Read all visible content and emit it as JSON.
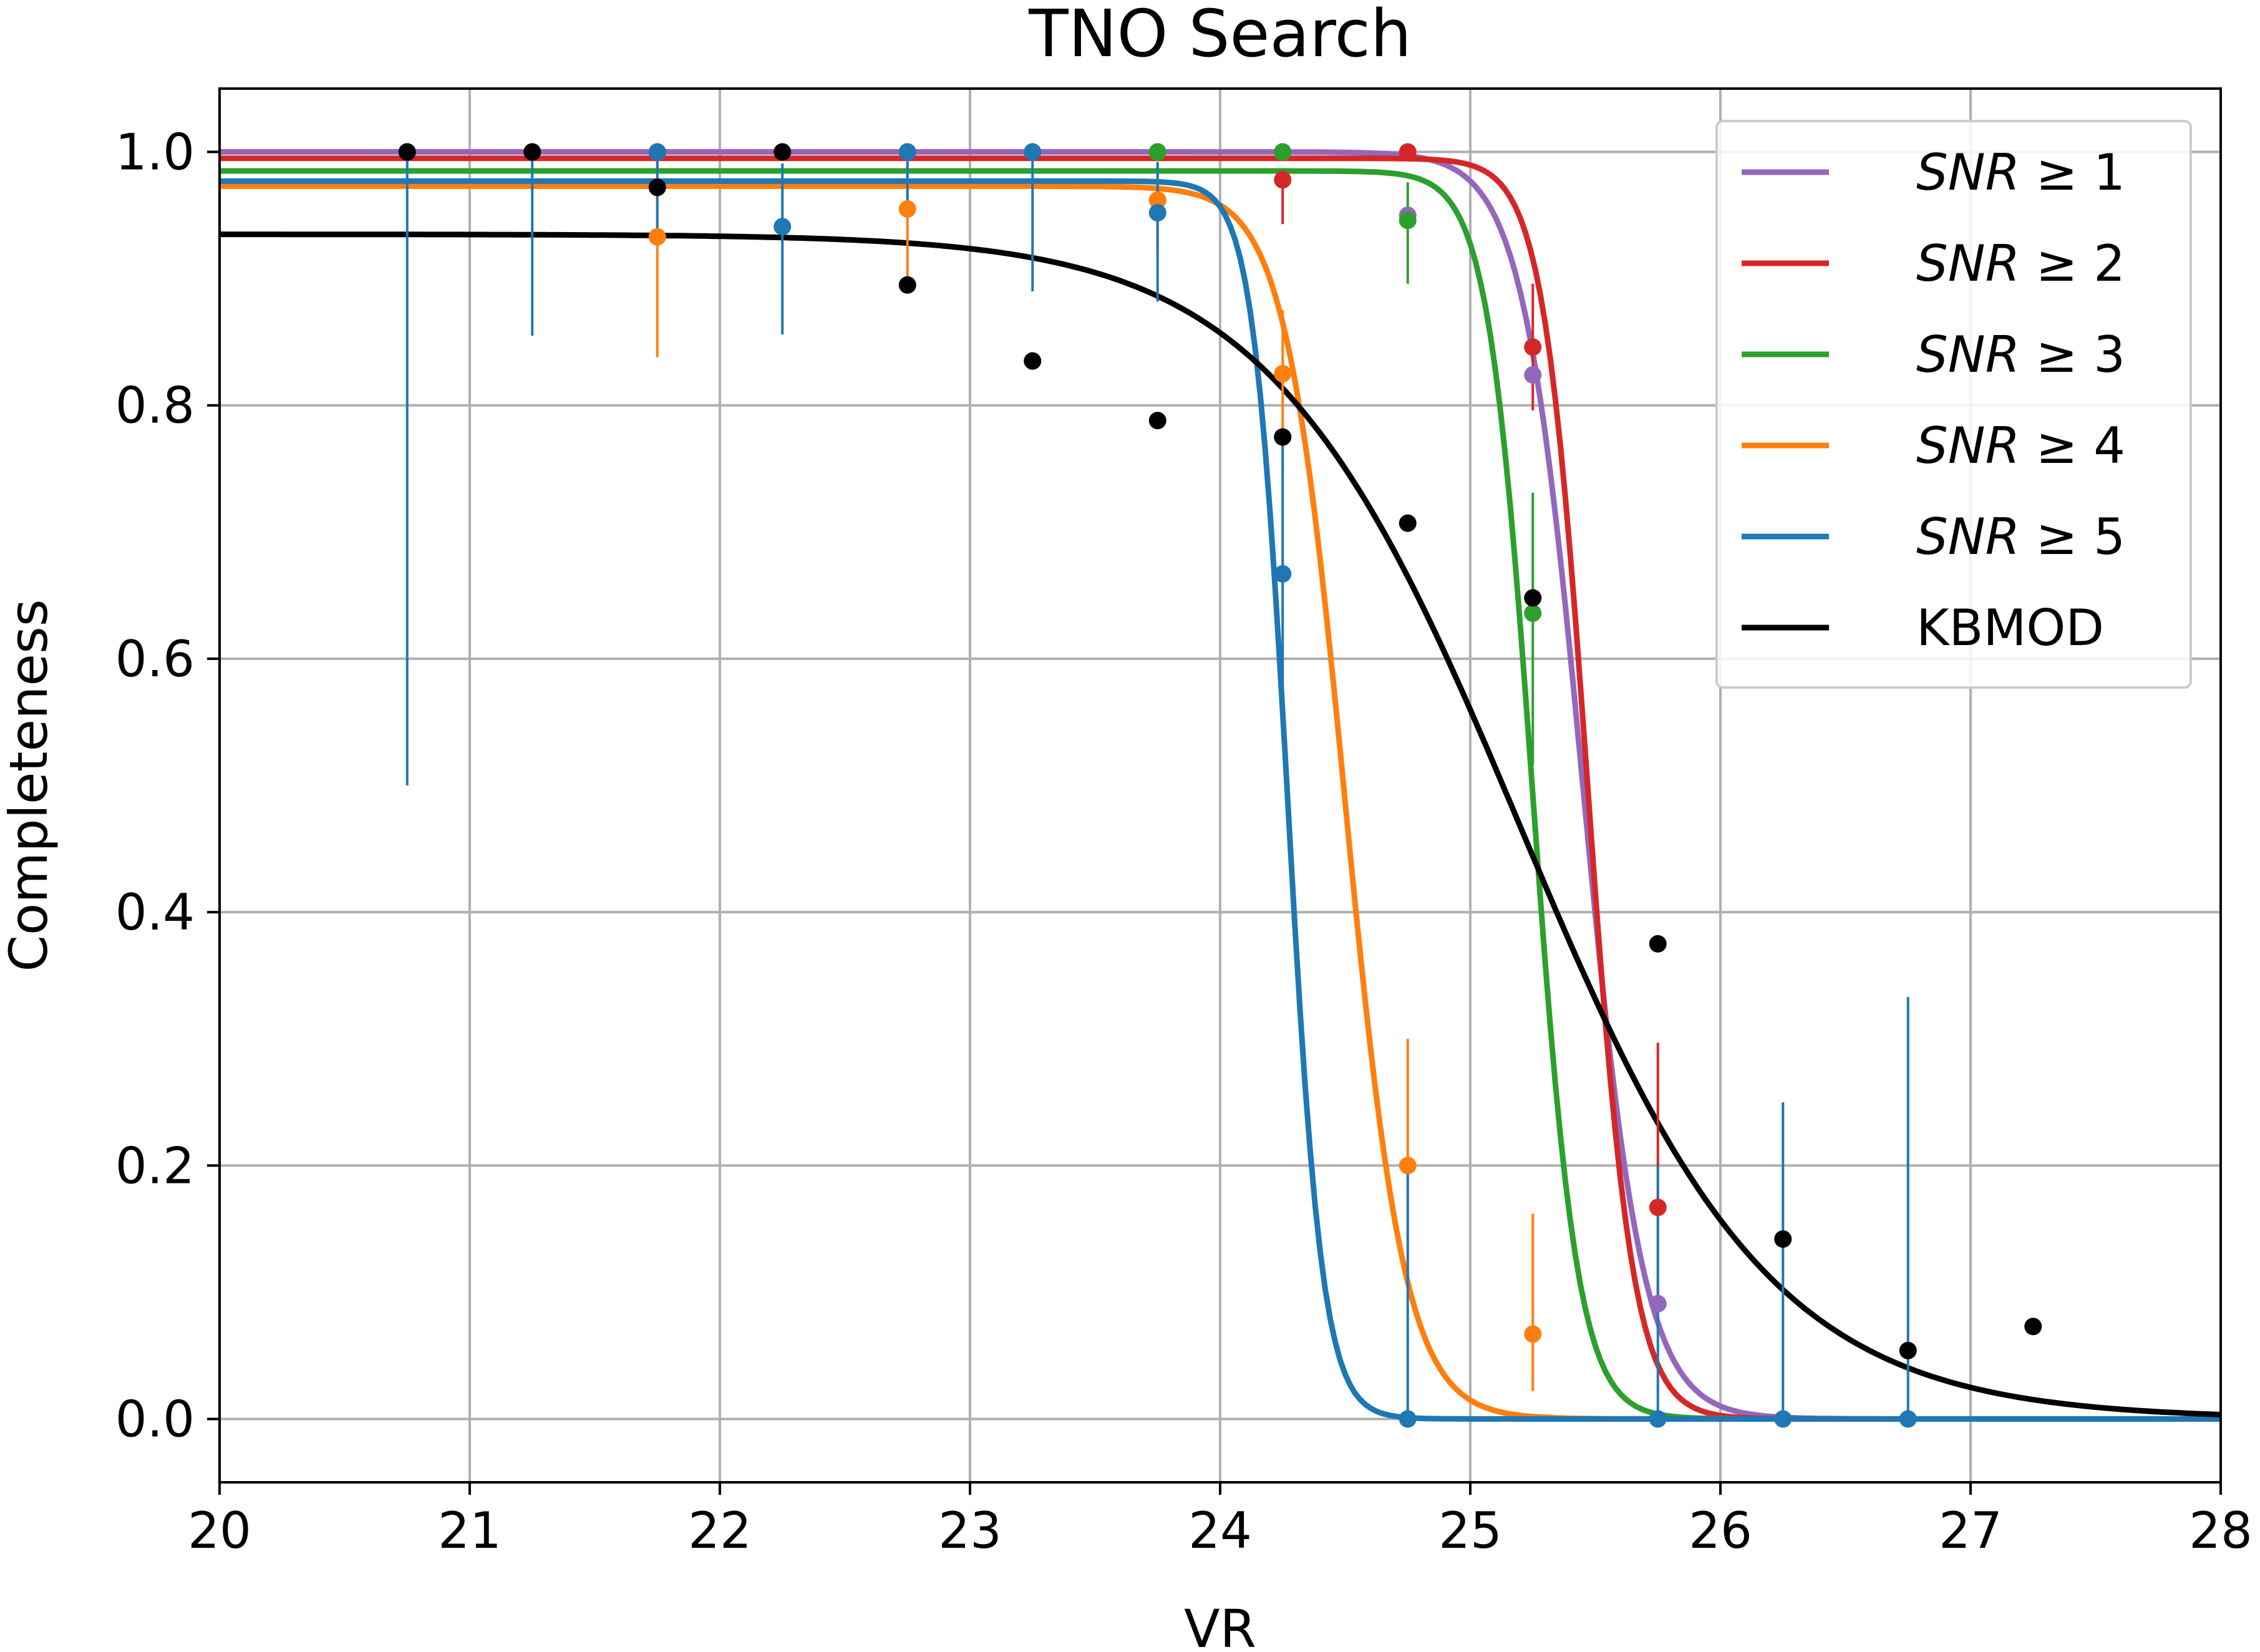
{
  "chart_data": {
    "type": "line",
    "title": "TNO Search",
    "xlabel": "VR",
    "ylabel": "Completeness",
    "xlim": [
      20,
      28
    ],
    "ylim": [
      -0.05,
      1.05
    ],
    "xticks": [
      20,
      21,
      22,
      23,
      24,
      25,
      26,
      27,
      28
    ],
    "xtick_labels": [
      "20",
      "21",
      "22",
      "23",
      "24",
      "25",
      "26",
      "27",
      "28"
    ],
    "yticks": [
      0.0,
      0.2,
      0.4,
      0.6,
      0.8,
      1.0
    ],
    "ytick_labels": [
      "0.0",
      "0.2",
      "0.4",
      "0.6",
      "0.8",
      "1.0"
    ],
    "grid": true,
    "legend_position": "top-right",
    "series": [
      {
        "name": "SNR ≥ 1",
        "legend_prefix": "SNR",
        "legend_suffix": " ≥ 1",
        "color": "#9467bd",
        "fit": {
          "max": 1.0,
          "mid": 25.45,
          "width": 0.12
        },
        "points": [
          {
            "x": 20.75,
            "y": 1.0,
            "err": [
              0,
              0
            ]
          },
          {
            "x": 21.25,
            "y": 1.0,
            "err": [
              0,
              0
            ]
          },
          {
            "x": 21.75,
            "y": 1.0,
            "err": [
              0,
              0
            ]
          },
          {
            "x": 22.25,
            "y": 1.0,
            "err": [
              0,
              0
            ]
          },
          {
            "x": 22.75,
            "y": 1.0,
            "err": [
              0,
              0
            ]
          },
          {
            "x": 23.25,
            "y": 1.0,
            "err": [
              0,
              0
            ]
          },
          {
            "x": 23.75,
            "y": 1.0,
            "err": [
              0,
              0
            ]
          },
          {
            "x": 24.25,
            "y": 1.0,
            "err": [
              0,
              0
            ]
          },
          {
            "x": 24.75,
            "y": 0.95,
            "err": [
              0,
              0
            ]
          },
          {
            "x": 25.25,
            "y": 0.824,
            "err": [
              0,
              0
            ]
          },
          {
            "x": 25.75,
            "y": 0.091,
            "err": [
              0,
              0
            ]
          }
        ]
      },
      {
        "name": "SNR ≥ 2",
        "legend_prefix": "SNR",
        "legend_suffix": " ≥ 2",
        "color": "#d62728",
        "fit": {
          "max": 0.995,
          "mid": 25.47,
          "width": 0.09
        },
        "points": [
          {
            "x": 24.25,
            "y": 0.978,
            "err": [
              0.035,
              0.0
            ]
          },
          {
            "x": 24.75,
            "y": 1.0,
            "err": [
              0,
              0
            ]
          },
          {
            "x": 25.25,
            "y": 0.846,
            "err": [
              0.05,
              0.05
            ]
          },
          {
            "x": 25.75,
            "y": 0.167,
            "err": [
              0.08,
              0.13
            ]
          }
        ]
      },
      {
        "name": "SNR ≥ 3",
        "legend_prefix": "SNR",
        "legend_suffix": " ≥ 3",
        "color": "#2ca02c",
        "fit": {
          "max": 0.985,
          "mid": 25.25,
          "width": 0.09
        },
        "points": [
          {
            "x": 23.75,
            "y": 1.0,
            "err": [
              0,
              0
            ]
          },
          {
            "x": 24.25,
            "y": 1.0,
            "err": [
              0,
              0
            ]
          },
          {
            "x": 24.75,
            "y": 0.946,
            "err": [
              0.05,
              0.03
            ]
          },
          {
            "x": 25.25,
            "y": 0.636,
            "err": [
              0.12,
              0.095
            ]
          }
        ]
      },
      {
        "name": "SNR ≥ 4",
        "legend_prefix": "SNR",
        "legend_suffix": " ≥ 4",
        "color": "#ff7f0e",
        "fit": {
          "max": 0.973,
          "mid": 24.5,
          "width": 0.12
        },
        "points": [
          {
            "x": 21.75,
            "y": 0.933,
            "err": [
              0.095,
              0.06
            ]
          },
          {
            "x": 22.75,
            "y": 0.955,
            "err": [
              0.06,
              0.04
            ]
          },
          {
            "x": 23.75,
            "y": 0.962,
            "err": [
              0.04,
              0.03
            ]
          },
          {
            "x": 24.25,
            "y": 0.825,
            "err": [
              0.08,
              0.05
            ]
          },
          {
            "x": 24.75,
            "y": 0.2,
            "err": [
              0.09,
              0.1
            ]
          },
          {
            "x": 25.25,
            "y": 0.067,
            "err": [
              0.045,
              0.095
            ]
          }
        ]
      },
      {
        "name": "SNR ≥ 5",
        "legend_prefix": "SNR",
        "legend_suffix": " ≥ 5",
        "color": "#1f77b4",
        "fit": {
          "max": 0.977,
          "mid": 24.27,
          "width": 0.07
        },
        "points": [
          {
            "x": 20.75,
            "y": 1.0,
            "err": [
              0.5,
              0.0
            ]
          },
          {
            "x": 21.25,
            "y": 1.0,
            "err": [
              0.145,
              0.0
            ]
          },
          {
            "x": 21.75,
            "y": 1.0,
            "err": [
              0.06,
              0.0
            ]
          },
          {
            "x": 22.25,
            "y": 0.941,
            "err": [
              0.085,
              0.05
            ]
          },
          {
            "x": 22.75,
            "y": 1.0,
            "err": [
              0.05,
              0.0
            ]
          },
          {
            "x": 23.25,
            "y": 1.0,
            "err": [
              0.11,
              0.0
            ]
          },
          {
            "x": 23.75,
            "y": 0.952,
            "err": [
              0.07,
              0.04
            ]
          },
          {
            "x": 24.25,
            "y": 0.667,
            "err": [
              0.11,
              0.11
            ]
          },
          {
            "x": 24.75,
            "y": 0.0,
            "err": [
              0.0,
              0.2
            ]
          },
          {
            "x": 25.75,
            "y": 0.0,
            "err": [
              0.0,
              0.2
            ]
          },
          {
            "x": 26.25,
            "y": 0.0,
            "err": [
              0.0,
              0.25
            ]
          },
          {
            "x": 26.75,
            "y": 0.0,
            "err": [
              0.0,
              0.333
            ]
          }
        ]
      },
      {
        "name": "KBMOD",
        "legend_prefix": "KBMOD",
        "legend_suffix": "",
        "color": "#000000",
        "fit": {
          "max": 0.935,
          "mid": 25.2,
          "width": 0.5
        },
        "points": [
          {
            "x": 20.75,
            "y": 1.0,
            "err": [
              0,
              0
            ]
          },
          {
            "x": 21.25,
            "y": 1.0,
            "err": [
              0,
              0
            ]
          },
          {
            "x": 21.75,
            "y": 0.972,
            "err": [
              0,
              0
            ]
          },
          {
            "x": 22.25,
            "y": 1.0,
            "err": [
              0,
              0
            ]
          },
          {
            "x": 22.75,
            "y": 0.895,
            "err": [
              0,
              0
            ]
          },
          {
            "x": 23.25,
            "y": 0.835,
            "err": [
              0,
              0
            ]
          },
          {
            "x": 23.75,
            "y": 0.788,
            "err": [
              0,
              0
            ]
          },
          {
            "x": 24.25,
            "y": 0.775,
            "err": [
              0,
              0
            ]
          },
          {
            "x": 24.75,
            "y": 0.707,
            "err": [
              0,
              0
            ]
          },
          {
            "x": 25.25,
            "y": 0.648,
            "err": [
              0,
              0
            ]
          },
          {
            "x": 25.75,
            "y": 0.375,
            "err": [
              0,
              0
            ]
          },
          {
            "x": 26.25,
            "y": 0.142,
            "err": [
              0,
              0
            ]
          },
          {
            "x": 26.75,
            "y": 0.054,
            "err": [
              0,
              0
            ]
          },
          {
            "x": 27.25,
            "y": 0.073,
            "err": [
              0,
              0
            ]
          }
        ]
      }
    ]
  }
}
